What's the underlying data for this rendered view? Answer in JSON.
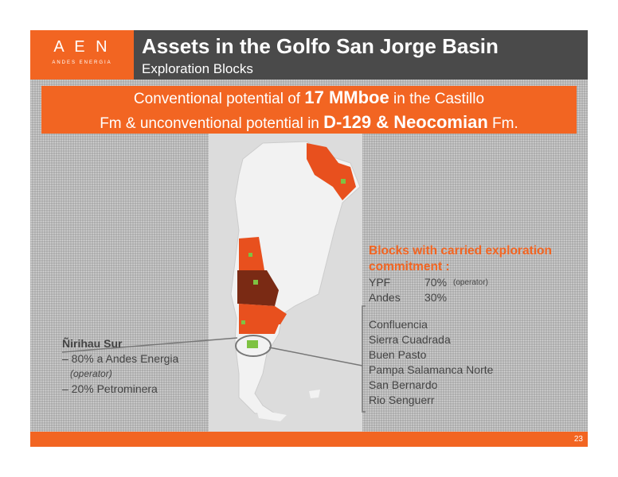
{
  "logo": {
    "letters": "A E N",
    "name": "ANDES ENERGIA"
  },
  "header": {
    "title": "Assets in the Golfo San Jorge Basin",
    "subtitle": "Exploration Blocks"
  },
  "banner": {
    "line1": [
      "Conventional potential of ",
      "17 MMboe",
      " in the Castillo"
    ],
    "line2": [
      "Fm & unconventional potential in ",
      "D-129 & Neocomian",
      " Fm."
    ]
  },
  "blocks": {
    "heading": "Blocks with carried exploration commitment :",
    "partners": [
      [
        "YPF",
        "70%",
        "(operator)"
      ],
      [
        "Andes",
        "30%"
      ]
    ],
    "list": [
      "Confluencia",
      "Sierra Cuadrada",
      "Buen Pasto",
      "Pampa Salamanca Norte",
      "San Bernardo",
      "Rio Senguerr"
    ]
  },
  "nirihau": {
    "name": "Ñirihau Sur",
    "lines": [
      "– 80% a Andes Energia",
      "(operator)",
      "– 20% Petrominera"
    ]
  },
  "page_number": "23"
}
